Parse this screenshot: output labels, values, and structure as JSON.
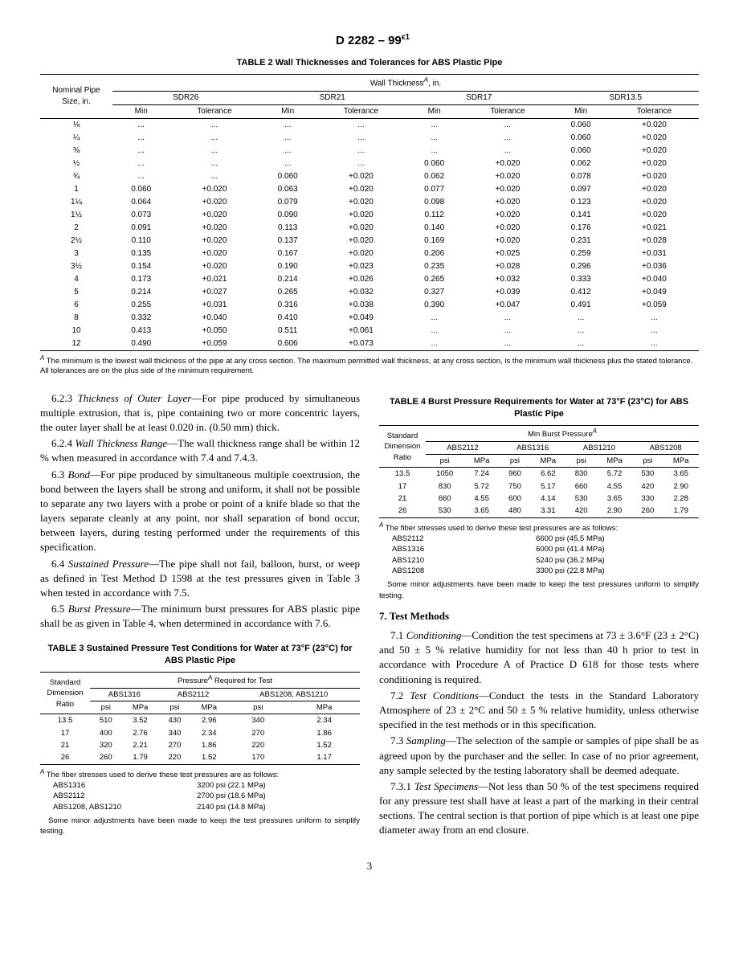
{
  "header": {
    "standard": "D 2282 – 99",
    "sup": "ϵ1",
    "logo": "ASTM"
  },
  "pagenum": "3",
  "table2": {
    "caption": "TABLE 2   Wall Thicknesses and Tolerances for ABS Plastic Pipe",
    "supertitle": "Wall Thickness",
    "supertitle_sup": "A",
    "supertitle_unit": ", in.",
    "col0": "Nominal Pipe Size, in.",
    "groups": [
      "SDR26",
      "SDR21",
      "SDR17",
      "SDR13.5"
    ],
    "sub": [
      "Min",
      "Tolerance"
    ],
    "rows": [
      [
        "⅛",
        "...",
        "...",
        "...",
        "...",
        "...",
        "...",
        "0.060",
        "+0.020"
      ],
      [
        "¼",
        "...",
        "...",
        "...",
        "...",
        "...",
        "...",
        "0.060",
        "+0.020"
      ],
      [
        "⅜",
        "...",
        "...",
        "...",
        "...",
        "...",
        "...",
        "0.060",
        "+0.020"
      ],
      [
        "½",
        "...",
        "...",
        "...",
        "...",
        "0.060",
        "+0.020",
        "0.062",
        "+0.020"
      ],
      [
        "¾",
        "...",
        "...",
        "0.060",
        "+0.020",
        "0.062",
        "+0.020",
        "0.078",
        "+0.020"
      ],
      [
        "1",
        "0.060",
        "+0.020",
        "0.063",
        "+0.020",
        "0.077",
        "+0.020",
        "0.097",
        "+0.020"
      ],
      [
        "1¼",
        "0.064",
        "+0.020",
        "0.079",
        "+0.020",
        "0.098",
        "+0.020",
        "0.123",
        "+0.020"
      ],
      [
        "1½",
        "0.073",
        "+0.020",
        "0.090",
        "+0.020",
        "0.112",
        "+0.020",
        "0.141",
        "+0.020"
      ],
      [
        "2",
        "0.091",
        "+0.020",
        "0.113",
        "+0.020",
        "0.140",
        "+0.020",
        "0.176",
        "+0.021"
      ],
      [
        "2½",
        "0.110",
        "+0.020",
        "0.137",
        "+0.020",
        "0.169",
        "+0.020",
        "0.231",
        "+0.028"
      ],
      [
        "3",
        "0.135",
        "+0.020",
        "0.167",
        "+0.020",
        "0.206",
        "+0.025",
        "0.259",
        "+0.031"
      ],
      [
        "3½",
        "0.154",
        "+0.020",
        "0.190",
        "+0.023",
        "0.235",
        "+0.028",
        "0.296",
        "+0.036"
      ],
      [
        "4",
        "0.173",
        "+0.021",
        "0.214",
        "+0.026",
        "0.265",
        "+0.032",
        "0.333",
        "+0.040"
      ],
      [
        "5",
        "0.214",
        "+0.027",
        "0.265",
        "+0.032",
        "0.327",
        "+0.039",
        "0.412",
        "+0.049"
      ],
      [
        "6",
        "0.255",
        "+0.031",
        "0.316",
        "+0.038",
        "0.390",
        "+0.047",
        "0.491",
        "+0.059"
      ],
      [
        "8",
        "0.332",
        "+0.040",
        "0.410",
        "+0.049",
        "...",
        "...",
        "...",
        "..."
      ],
      [
        "10",
        "0.413",
        "+0.050",
        "0.511",
        "+0.061",
        "...",
        "...",
        "...",
        "..."
      ],
      [
        "12",
        "0.490",
        "+0.059",
        "0.606",
        "+0.073",
        "...",
        "...",
        "...",
        "..."
      ]
    ],
    "footnote_sup": "A",
    "footnote": " The minimum is the lowest wall thickness of the pipe at any cross section. The maximum permitted wall thickness, at any cross section, is the minimum wall thickness plus the stated tolerance. All tolerances are on the plus side of the minimum requirement."
  },
  "body": {
    "p623": "Thickness of Outer Layer",
    "p623_num": "6.2.3 ",
    "p623_text": "—For pipe produced by simultaneous multiple extrusion, that is, pipe containing two or more concentric layers, the outer layer shall be at least 0.020 in. (0.50 mm) thick.",
    "p624_num": "6.2.4 ",
    "p624": "Wall Thickness Range",
    "p624_text": "—The wall thickness range shall be within 12 % when measured in accordance with 7.4 and 7.4.3.",
    "p63_num": "6.3 ",
    "p63": "Bond",
    "p63_text": "—For pipe produced by simultaneous multiple coextrusion, the bond between the layers shall be strong and uniform, it shall not be possible to separate any two layers with a probe or point of a knife blade so that the layers separate cleanly at any point, nor shall separation of bond occur, between layers, during testing performed under the requirements of this specification.",
    "p64_num": "6.4 ",
    "p64": "Sustained Pressure",
    "p64_text": "—The pipe shall not fail, balloon, burst, or weep as defined in Test Method D 1598 at the test pressures given in Table 3 when tested in accordance with 7.5.",
    "p65_num": "6.5 ",
    "p65": "Burst Pressure",
    "p65_text": "—The minimum burst pressures for ABS plastic pipe shall be as given in Table 4, when determined in accordance with 7.6.",
    "sec7": "7. Test Methods",
    "p71_num": "7.1 ",
    "p71": "Conditioning",
    "p71_text": "—Condition the test specimens at 73 ± 3.6°F (23 ± 2°C) and 50 ± 5 % relative humidity for not less than 40 h prior to test in accordance with Procedure A of Practice D 618 for those tests where conditioning is required.",
    "p72_num": "7.2 ",
    "p72": "Test Conditions",
    "p72_text": "—Conduct the tests in the Standard Laboratory Atmosphere of 23 ± 2°C and 50 ± 5 % relative humidity, unless otherwise specified in the test methods or in this specification.",
    "p73_num": "7.3 ",
    "p73": "Sampling",
    "p73_text": "—The selection of the sample or samples of pipe shall be as agreed upon by the purchaser and the seller. In case of no prior agreement, any sample selected by the testing laboratory shall be deemed adequate.",
    "p731_num": "7.3.1 ",
    "p731": "Test Specimens",
    "p731_text": "—Not less than 50 % of the test specimens required for any pressure test shall have at least a part of the marking in their central sections. The central section is that portion of pipe which is at least one pipe diameter away from an end closure."
  },
  "table3": {
    "caption": "TABLE 3   Sustained Pressure Test Conditions for Water at 73°F (23°C) for ABS Plastic Pipe",
    "supertitle": "Pressure",
    "supertitle_sup": "A",
    "supertitle_tail": " Required for Test",
    "col0": "Standard Dimension Ratio",
    "groups": [
      "ABS1316",
      "ABS2112",
      "ABS1208, ABS1210"
    ],
    "sub": [
      "psi",
      "MPa"
    ],
    "rows": [
      [
        "13.5",
        "510",
        "3.52",
        "430",
        "2.96",
        "340",
        "2.34"
      ],
      [
        "17",
        "400",
        "2.76",
        "340",
        "2.34",
        "270",
        "1.86"
      ],
      [
        "21",
        "320",
        "2.21",
        "270",
        "1.86",
        "220",
        "1.52"
      ],
      [
        "26",
        "260",
        "1.79",
        "220",
        "1.52",
        "170",
        "1.17"
      ]
    ],
    "footnote_sup": "A",
    "footnote": " The fiber stresses used to derive these test pressures are as follows:",
    "stresses": [
      [
        "ABS1316",
        "3200 psi (22.1 MPa)"
      ],
      [
        "ABS2112",
        "2700 psi (18.6 MPa)"
      ],
      [
        "ABS1208, ABS1210",
        "2140 psi (14.8 MPa)"
      ]
    ],
    "note": "Some minor adjustments have been made to keep the test pressures uniform to simplify testing."
  },
  "table4": {
    "caption": "TABLE 4   Burst Pressure Requirements for Water at 73°F (23°C) for ABS Plastic Pipe",
    "supertitle": "Min Burst Pressure",
    "supertitle_sup": "A",
    "col0": "Standard Dimension Ratio",
    "groups": [
      "ABS2112",
      "ABS1316",
      "ABS1210",
      "ABS1208"
    ],
    "sub": [
      "psi",
      "MPa"
    ],
    "rows": [
      [
        "13.5",
        "1050",
        "7.24",
        "960",
        "6.62",
        "830",
        "5.72",
        "530",
        "3.65"
      ],
      [
        "17",
        "830",
        "5.72",
        "750",
        "5.17",
        "660",
        "4.55",
        "420",
        "2.90"
      ],
      [
        "21",
        "660",
        "4.55",
        "600",
        "4.14",
        "530",
        "3.65",
        "330",
        "2.28"
      ],
      [
        "26",
        "530",
        "3.65",
        "480",
        "3.31",
        "420",
        "2.90",
        "260",
        "1.79"
      ]
    ],
    "footnote_sup": "A",
    "footnote": " The fiber stresses used to derive these test pressures are as follows:",
    "stresses": [
      [
        "ABS2112",
        "6600 psi (45.5 MPa)"
      ],
      [
        "ABS1316",
        "6000 psi (41.4 MPa)"
      ],
      [
        "ABS1210",
        "5240 psi (36.2 MPa)"
      ],
      [
        "ABS1208",
        "3300 psi (22.8 MPa)"
      ]
    ],
    "note": "Some minor adjustments have been made to keep the test pressures uniform to simplify testing."
  }
}
